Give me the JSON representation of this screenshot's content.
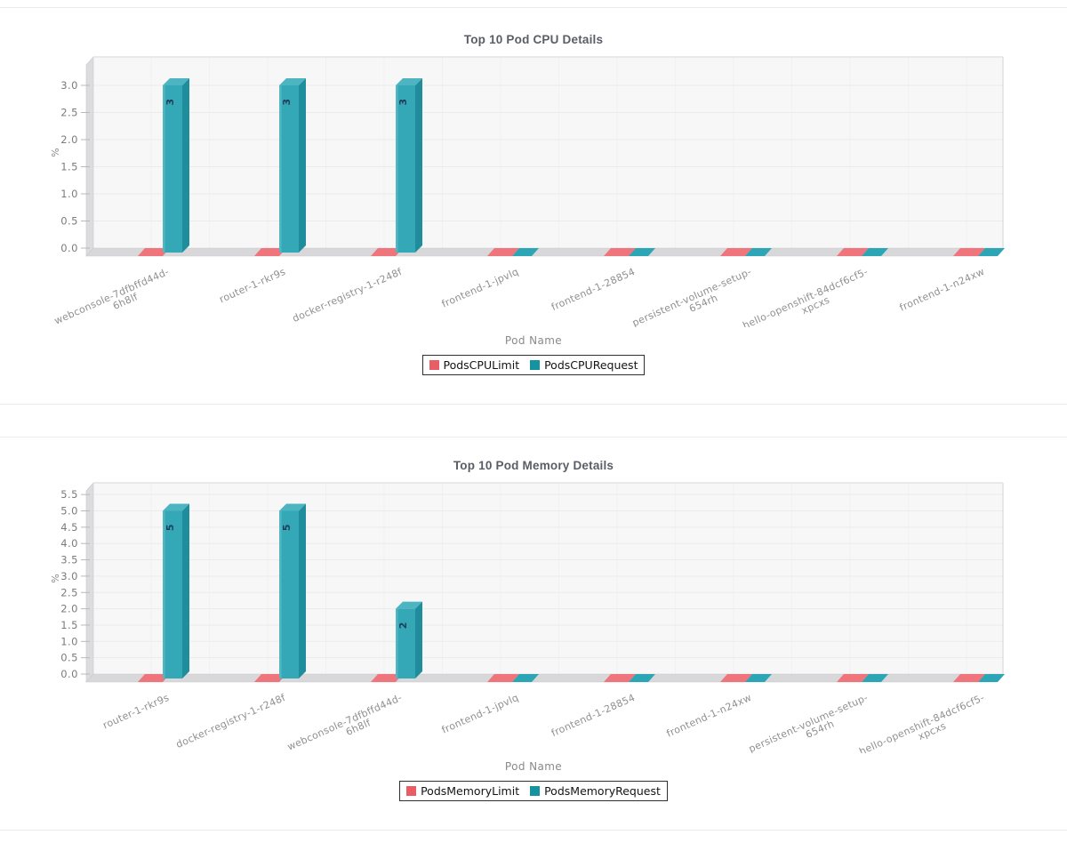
{
  "colors": {
    "limit_series": "#ef747c",
    "request_series": "#2ca6b4",
    "limit_legend": "#e85d66",
    "request_legend": "#15939f",
    "bar_front": "#34a8b6",
    "bar_side": "#1f8d9c",
    "bar_top": "#4db5c1",
    "bar_highlight": "#6cc3cd",
    "value_text": "#1f3d5a",
    "plot_bg": "#f7f7f8",
    "wall": "#dcdcde",
    "floor": "#d8d8da",
    "floor_edge": "#c9c9cb",
    "grid_h": "#ebebed",
    "grid_v": "#f1f1f3",
    "tick_text": "#7b7b7b",
    "axis_title_text": "#8a8a8a",
    "xlabel_text": "#8f8f8f",
    "title_text": "#595e66"
  },
  "chart_data": [
    {
      "type": "bar",
      "title": "Top 10 Pod CPU Details",
      "xlabel": "Pod Name",
      "ylabel": "%",
      "ylim": [
        0,
        3.5
      ],
      "ytick_step": 0.5,
      "ytick_max": 3.0,
      "yticks": [
        "0.0",
        "0.5",
        "1.0",
        "1.5",
        "2.0",
        "2.5",
        "3.0"
      ],
      "legend_position": "bottom",
      "grid": true,
      "categories": [
        "webconsole-7dfbffd44d-6h8lf",
        "router-1-rkr9s",
        "docker-registry-1-r248f",
        "frontend-1-jpvlq",
        "frontend-1-28854",
        "persistent-volume-setup-654rh",
        "hello-openshift-84dcf6cf5-xpcxs",
        "frontend-1-n24xw"
      ],
      "category_lines": [
        [
          "webconsole-7dfbffd44d-",
          "6h8lf"
        ],
        [
          "router-1-rkr9s"
        ],
        [
          "docker-registry-1-r248f"
        ],
        [
          "frontend-1-jpvlq"
        ],
        [
          "frontend-1-28854"
        ],
        [
          "persistent-volume-setup-",
          "654rh"
        ],
        [
          "hello-openshift-84dcf6cf5-",
          "xpcxs"
        ],
        [
          "frontend-1-n24xw"
        ]
      ],
      "series": [
        {
          "name": "PodsCPULimit",
          "values": [
            0,
            0,
            0,
            0,
            0,
            0,
            0,
            0
          ]
        },
        {
          "name": "PodsCPURequest",
          "values": [
            3,
            3,
            3,
            0,
            0,
            0,
            0,
            0
          ]
        }
      ],
      "legend": [
        {
          "label": "PodsCPULimit"
        },
        {
          "label": "PodsCPURequest"
        }
      ]
    },
    {
      "type": "bar",
      "title": "Top 10 Pod Memory Details",
      "xlabel": "Pod Name",
      "ylabel": "%",
      "ylim": [
        0,
        5.9
      ],
      "ytick_step": 0.5,
      "ytick_max": 5.5,
      "yticks": [
        "0.0",
        "0.5",
        "1.0",
        "1.5",
        "2.0",
        "2.5",
        "3.0",
        "3.5",
        "4.0",
        "4.5",
        "5.0",
        "5.5"
      ],
      "legend_position": "bottom",
      "grid": true,
      "categories": [
        "router-1-rkr9s",
        "docker-registry-1-r248f",
        "webconsole-7dfbffd44d-6h8lf",
        "frontend-1-jpvlq",
        "frontend-1-28854",
        "frontend-1-n24xw",
        "persistent-volume-setup-654rh",
        "hello-openshift-84dcf6cf5-xpcxs"
      ],
      "category_lines": [
        [
          "router-1-rkr9s"
        ],
        [
          "docker-registry-1-r248f"
        ],
        [
          "webconsole-7dfbffd44d-",
          "6h8lf"
        ],
        [
          "frontend-1-jpvlq"
        ],
        [
          "frontend-1-28854"
        ],
        [
          "frontend-1-n24xw"
        ],
        [
          "persistent-volume-setup-",
          "654rh"
        ],
        [
          "hello-openshift-84dcf6cf5-",
          "xpcxs"
        ]
      ],
      "series": [
        {
          "name": "PodsMemoryLimit",
          "values": [
            0,
            0,
            0,
            0,
            0,
            0,
            0,
            0
          ]
        },
        {
          "name": "PodsMemoryRequest",
          "values": [
            5,
            5,
            2,
            0,
            0,
            0,
            0,
            0
          ]
        }
      ],
      "legend": [
        {
          "label": "PodsMemoryLimit"
        },
        {
          "label": "PodsMemoryRequest"
        }
      ]
    }
  ]
}
